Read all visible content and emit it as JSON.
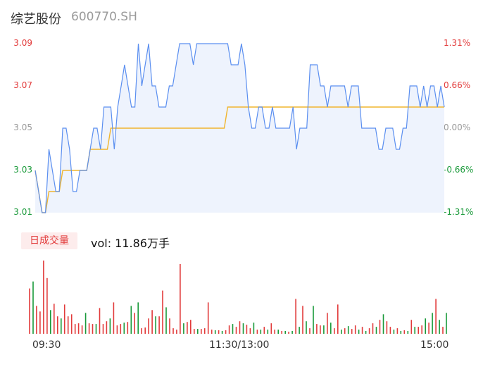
{
  "header": {
    "name": "综艺股份",
    "code": "600770.SH"
  },
  "colors": {
    "up": "#e23b3b",
    "down": "#1a9a3a",
    "flat": "#999999",
    "price": "#5b8ff0",
    "avg": "#f0b52e",
    "area": "#eef3fd"
  },
  "volume": {
    "tag": "日成交量",
    "text": "vol: 11.86万手"
  },
  "chart_data": {
    "type": "line",
    "xlabel": "",
    "ylabel": "",
    "x_ticks": [
      "09:30",
      "11:30/13:00",
      "15:00"
    ],
    "y_ticks_left": [
      "3.09",
      "3.07",
      "3.05",
      "3.03",
      "3.01"
    ],
    "y_ticks_right": [
      "1.31%",
      "0.66%",
      "0.00%",
      "-0.66%",
      "-1.31%"
    ],
    "ylim": [
      3.01,
      3.09
    ],
    "prev_close": 3.05,
    "series": [
      {
        "values": [
          3.03,
          3.02,
          3.01,
          3.01,
          3.04,
          3.03,
          3.02,
          3.02,
          3.05,
          3.05,
          3.04,
          3.02,
          3.02,
          3.03,
          3.03,
          3.03,
          3.04,
          3.05,
          3.05,
          3.04,
          3.06,
          3.06,
          3.06,
          3.04,
          3.06,
          3.07,
          3.08,
          3.07,
          3.06,
          3.06,
          3.09,
          3.07,
          3.08,
          3.09,
          3.07,
          3.07,
          3.06,
          3.06,
          3.06,
          3.07,
          3.07,
          3.08,
          3.09,
          3.09,
          3.09,
          3.09,
          3.08,
          3.09,
          3.09,
          3.09,
          3.09,
          3.09,
          3.09,
          3.09,
          3.09,
          3.09,
          3.09,
          3.08,
          3.08,
          3.08,
          3.09,
          3.08,
          3.06,
          3.05,
          3.05,
          3.06,
          3.06,
          3.05,
          3.05,
          3.06,
          3.05,
          3.05,
          3.05,
          3.05,
          3.05,
          3.06,
          3.04,
          3.05,
          3.05,
          3.05,
          3.08,
          3.08,
          3.08,
          3.07,
          3.07,
          3.06,
          3.07,
          3.07,
          3.07,
          3.07,
          3.07,
          3.06,
          3.07,
          3.07,
          3.07,
          3.05,
          3.05,
          3.05,
          3.05,
          3.05,
          3.04,
          3.04,
          3.05,
          3.05,
          3.05,
          3.04,
          3.04,
          3.05,
          3.05,
          3.07,
          3.07,
          3.07,
          3.06,
          3.07,
          3.06,
          3.07,
          3.07,
          3.06,
          3.07,
          3.06
        ]
      },
      {
        "values": [
          3.03,
          3.02,
          3.01,
          3.01,
          3.02,
          3.02,
          3.02,
          3.02,
          3.03,
          3.03,
          3.03,
          3.03,
          3.03,
          3.03,
          3.03,
          3.03,
          3.04,
          3.04,
          3.04,
          3.04,
          3.04,
          3.04,
          3.05,
          3.05,
          3.05,
          3.05,
          3.05,
          3.05,
          3.05,
          3.05,
          3.05,
          3.05,
          3.05,
          3.05,
          3.05,
          3.05,
          3.05,
          3.05,
          3.05,
          3.05,
          3.05,
          3.05,
          3.05,
          3.05,
          3.05,
          3.05,
          3.05,
          3.05,
          3.05,
          3.05,
          3.05,
          3.05,
          3.05,
          3.05,
          3.05,
          3.05,
          3.06,
          3.06,
          3.06,
          3.06,
          3.06,
          3.06,
          3.06,
          3.06,
          3.06,
          3.06,
          3.06,
          3.06,
          3.06,
          3.06,
          3.06,
          3.06,
          3.06,
          3.06,
          3.06,
          3.06,
          3.06,
          3.06,
          3.06,
          3.06,
          3.06,
          3.06,
          3.06,
          3.06,
          3.06,
          3.06,
          3.06,
          3.06,
          3.06,
          3.06,
          3.06,
          3.06,
          3.06,
          3.06,
          3.06,
          3.06,
          3.06,
          3.06,
          3.06,
          3.06,
          3.06,
          3.06,
          3.06,
          3.06,
          3.06,
          3.06,
          3.06,
          3.06,
          3.06,
          3.06,
          3.06,
          3.06,
          3.06,
          3.06,
          3.06,
          3.06,
          3.06,
          3.06,
          3.06,
          3.06
        ]
      }
    ],
    "volume_series": {
      "values": [
        65,
        75,
        40,
        32,
        105,
        80,
        34,
        43,
        25,
        22,
        42,
        25,
        28,
        14,
        15,
        12,
        30,
        15,
        14,
        14,
        37,
        14,
        18,
        22,
        45,
        12,
        14,
        16,
        17,
        40,
        30,
        45,
        8,
        9,
        22,
        34,
        25,
        25,
        62,
        38,
        22,
        8,
        6,
        100,
        15,
        17,
        20,
        7,
        7,
        7,
        8,
        45,
        6,
        5,
        5,
        4,
        5,
        12,
        14,
        10,
        18,
        15,
        13,
        8,
        16,
        6,
        6,
        10,
        6,
        15,
        6,
        6,
        4,
        4,
        3,
        4,
        50,
        10,
        40,
        18,
        8,
        40,
        14,
        12,
        12,
        30,
        16,
        8,
        42,
        6,
        8,
        11,
        7,
        12,
        6,
        10,
        4,
        8,
        15,
        10,
        20,
        28,
        18,
        10,
        6,
        8,
        4,
        5,
        4,
        20,
        10,
        10,
        12,
        22,
        16,
        30,
        50,
        20,
        10,
        30
      ],
      "up": [
        true,
        false,
        true,
        true,
        true,
        true,
        false,
        true,
        true,
        false,
        true,
        true,
        true,
        true,
        true,
        true,
        false,
        true,
        true,
        false,
        true,
        true,
        true,
        false,
        true,
        true,
        true,
        false,
        true,
        false,
        true,
        false,
        true,
        true,
        true,
        true,
        false,
        true,
        true,
        false,
        true,
        true,
        true,
        true,
        false,
        true,
        true,
        true,
        false,
        true,
        true,
        true,
        true,
        false,
        true,
        false,
        true,
        true,
        false,
        true,
        true,
        false,
        true,
        true,
        false,
        true,
        false,
        true,
        false,
        true,
        true,
        false,
        true,
        false,
        true,
        false,
        true,
        false,
        true,
        false,
        true,
        false,
        true,
        true,
        false,
        true,
        false,
        true,
        true,
        false,
        true,
        false,
        true,
        true,
        false,
        true,
        false,
        true,
        true,
        false,
        true,
        false,
        true,
        true,
        false,
        true,
        false,
        true,
        false,
        true,
        false,
        true,
        true,
        false,
        true,
        false,
        true,
        false,
        true,
        false
      ]
    }
  }
}
